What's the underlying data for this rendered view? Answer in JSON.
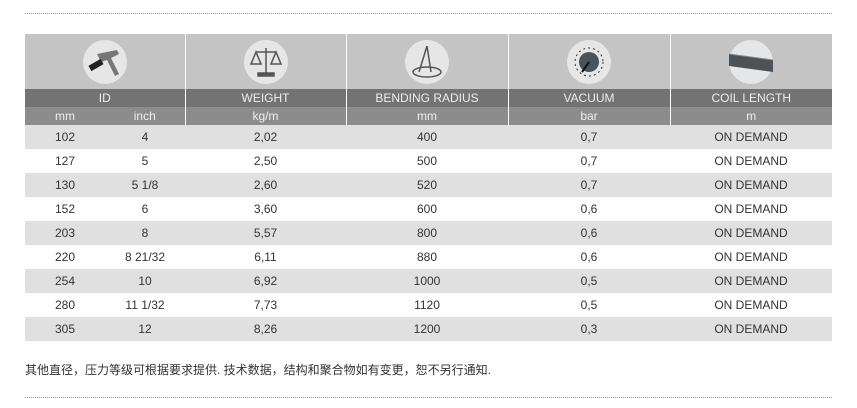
{
  "columns": [
    {
      "icon": "caliper-icon",
      "title": "ID",
      "units": [
        "mm",
        "inch"
      ]
    },
    {
      "icon": "scale-icon",
      "title": "WEIGHT",
      "units": [
        "kg/m"
      ]
    },
    {
      "icon": "compass-icon",
      "title": "BENDING RADIUS",
      "units": [
        "mm"
      ]
    },
    {
      "icon": "gauge-icon",
      "title": "VACUUM",
      "units": [
        "bar"
      ]
    },
    {
      "icon": "tape-measure-icon",
      "title": "COIL LENGTH",
      "units": [
        "m"
      ]
    }
  ],
  "rows": [
    [
      "102",
      "4",
      "2,02",
      "400",
      "0,7",
      "ON DEMAND"
    ],
    [
      "127",
      "5",
      "2,50",
      "500",
      "0,7",
      "ON DEMAND"
    ],
    [
      "130",
      "5 1/8",
      "2,60",
      "520",
      "0,7",
      "ON DEMAND"
    ],
    [
      "152",
      "6",
      "3,60",
      "600",
      "0,6",
      "ON DEMAND"
    ],
    [
      "203",
      "8",
      "5,57",
      "800",
      "0,6",
      "ON DEMAND"
    ],
    [
      "220",
      "8 21/32",
      "6,11",
      "880",
      "0,6",
      "ON DEMAND"
    ],
    [
      "254",
      "10",
      "6,92",
      "1000",
      "0,5",
      "ON DEMAND"
    ],
    [
      "280",
      "11 1/32",
      "7,73",
      "1120",
      "0,5",
      "ON DEMAND"
    ],
    [
      "305",
      "12",
      "8,26",
      "1200",
      "0,3",
      "ON DEMAND"
    ]
  ],
  "note": "其他直径，压力等级可根据要求提供. 技术数据，结构和聚合物如有变更，恕不另行通知."
}
